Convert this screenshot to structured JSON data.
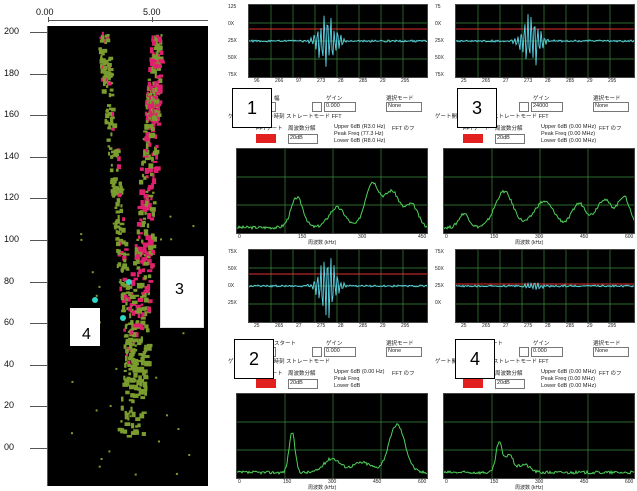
{
  "depth_panel": {
    "top_axis": [
      "0.00",
      "5.00"
    ],
    "depth_ticks": [
      "200",
      "180",
      "160",
      "140",
      "120",
      "100",
      "80",
      "60",
      "40",
      "20",
      "00"
    ],
    "markers": [
      "3",
      "4"
    ]
  },
  "scopes": [
    {
      "number": "1",
      "wave_y": [
        "125",
        "0X",
        "25X",
        "50X",
        "75X"
      ],
      "wave_x": [
        "96",
        "266",
        "97",
        "273",
        "28",
        "285",
        "29",
        "295"
      ],
      "ctrl_line1": [
        "幅",
        "ゲイン",
        "選択モード"
      ],
      "ctrl_line2": [
        "0.000",
        "None"
      ],
      "ctrl_line3": "ゲート開始  ゲート時刻  ストレートモード  FFT",
      "ctrl_line4": [
        "Upper 6dB  (R3.0 Hz)",
        "Peak Freq  (77.3 Hz)",
        "Lower 6dB  (R8.0 Hz)"
      ],
      "ctrl_line5": [
        "FFTゲート",
        "周波数分解",
        "FFT のフ"
      ],
      "select_value": "20dB",
      "fft_x": [
        "0",
        "150",
        "300",
        "450"
      ],
      "fft_xlabel": "周波数 (kHz)"
    },
    {
      "number": "3",
      "wave_y": [
        "75",
        "0X",
        "25X",
        "50X",
        "75X"
      ],
      "wave_x": [
        "25",
        "265",
        "27",
        "273",
        "28",
        "285",
        "29",
        "295"
      ],
      "ctrl_line1": [
        "幅",
        "ゲイン",
        "選択モード"
      ],
      "ctrl_line2": [
        "24000",
        "None"
      ],
      "ctrl_line3": "ゲート開始  ゲート時刻  ストレートモード  FFT",
      "ctrl_line4": [
        "Upper 6dB  (0.00 MHz)",
        "Peak Freq  (0.00 MHz)",
        "Lower 6dB  (0.00 MHz)"
      ],
      "ctrl_line5": [
        "FFTゲート",
        "周波数分解",
        "FFT のフ"
      ],
      "select_value": "20dB",
      "fft_x": [
        "0",
        "150",
        "300",
        "450",
        "600"
      ],
      "fft_xlabel": "周波数 (kHz)"
    },
    {
      "number": "2",
      "wave_y": [
        "75X",
        "50X",
        "0X",
        "25X"
      ],
      "wave_x": [
        "25",
        "265",
        "27",
        "275",
        "28",
        "285",
        "29",
        "295"
      ],
      "ctrl_line1": [
        "スタート",
        "ゲイン",
        "選択モード"
      ],
      "ctrl_line2": [
        "0.000",
        "None"
      ],
      "ctrl_line3": "ゲート開始  ゲート時刻  ストレートモード",
      "ctrl_line4": [
        "Upper 6dB  (0.00 Hz)",
        "Peak Freq",
        "Lower 6dB"
      ],
      "ctrl_line5": [
        "FFTゲート",
        "周波数分解",
        "FFT のフ"
      ],
      "select_value": "20dB",
      "fft_x": [
        "0",
        "150",
        "300",
        "450",
        "600"
      ],
      "fft_xlabel": "周波数 (kHz)"
    },
    {
      "number": "4",
      "wave_y": [
        "75X",
        "50X",
        "25X",
        "0X"
      ],
      "wave_x": [
        "25",
        "265",
        "27",
        "275",
        "28",
        "285",
        "29",
        "295"
      ],
      "ctrl_line1": [
        "スタート",
        "ゲイン",
        "選択モード"
      ],
      "ctrl_line2": [
        "0.000",
        "None"
      ],
      "ctrl_line3": "ゲート開始  ゲート時刻  ストレートモード  FFT",
      "ctrl_line4": [
        "Upper 6dB  (0.00 MHz)",
        "Peak Freq  (0.00 MHz)",
        "Lower 6dB  (0.00 MHz)"
      ],
      "ctrl_line5": [
        "FFTゲート",
        "周波数分解",
        "FFT のフ"
      ],
      "select_value": "20dB",
      "fft_x": [
        "0",
        "150",
        "300",
        "450",
        "600"
      ],
      "fft_xlabel": "周波数 (kHz)"
    }
  ],
  "colors": {
    "trace": "#5ad4e6",
    "fft": "#4fd15a",
    "cursor": "#e03030",
    "grid": "#3c8a3c",
    "depth_green": "#7b9c2e",
    "depth_pink": "#e0206e"
  }
}
